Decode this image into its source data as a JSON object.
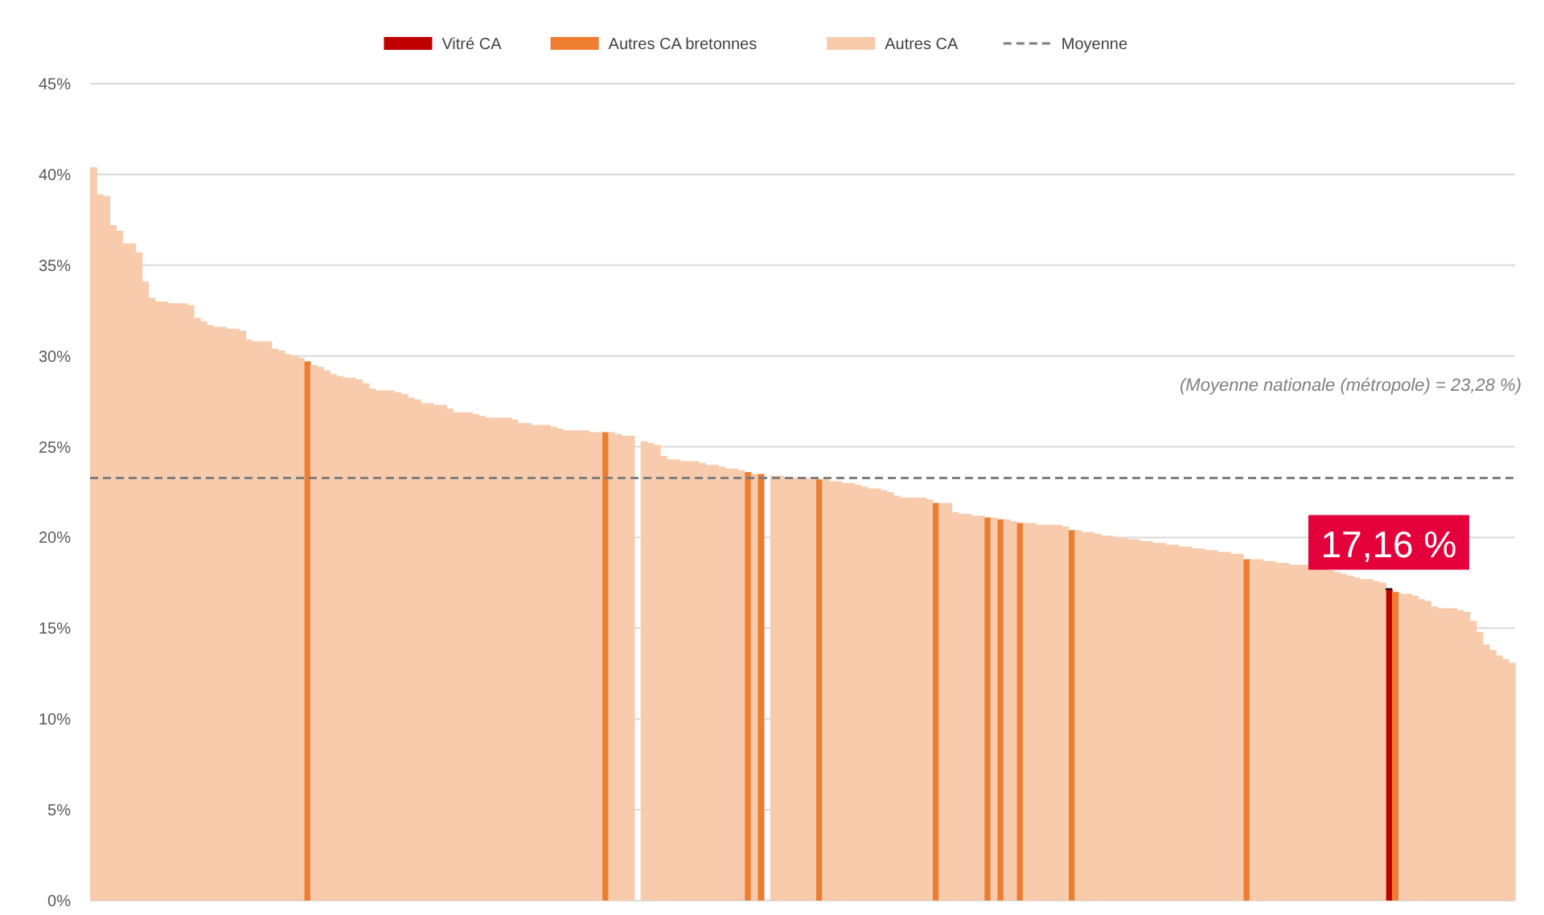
{
  "chart_data": {
    "type": "bar",
    "legend": "top",
    "grid": "y",
    "ylim": [
      0,
      45
    ],
    "yticks": [
      {
        "value": 0,
        "label": "0%"
      },
      {
        "value": 5,
        "label": "5%"
      },
      {
        "value": 10,
        "label": "10%"
      },
      {
        "value": 15,
        "label": "15%"
      },
      {
        "value": 20,
        "label": "20%"
      },
      {
        "value": 25,
        "label": "25%"
      },
      {
        "value": 30,
        "label": "30%"
      },
      {
        "value": 35,
        "label": "35%"
      },
      {
        "value": 40,
        "label": "40%"
      },
      {
        "value": 45,
        "label": "45%"
      }
    ],
    "ref_lines": [
      {
        "axis": "y",
        "value": 23.28,
        "label": "Moyenne",
        "color": "#7f7f7f",
        "line_style": "dashed"
      }
    ],
    "annotations": [
      "(Moyenne nationale (métropole) = 23,28 %)"
    ],
    "categories": [
      null,
      null,
      null,
      null,
      null,
      null,
      null,
      null,
      null,
      null,
      null,
      null,
      null,
      null,
      null,
      null,
      null,
      null,
      null,
      null,
      null,
      null,
      null,
      null,
      null,
      null,
      null,
      null,
      null,
      null,
      null,
      null,
      null,
      null,
      null,
      null,
      null,
      null,
      null,
      null,
      null,
      null,
      null,
      null,
      null,
      null,
      null,
      null,
      null,
      null,
      null,
      null,
      null,
      null,
      null,
      null,
      null,
      null,
      null,
      null,
      null,
      null,
      null,
      null,
      null,
      null,
      null,
      null,
      null,
      null,
      null,
      null,
      null,
      null,
      null,
      null,
      null,
      null,
      null,
      null,
      null,
      null,
      null,
      null,
      null,
      null,
      null,
      null,
      null,
      null,
      null,
      null,
      null,
      null,
      null,
      null,
      null,
      null,
      null,
      null,
      null,
      null,
      null,
      null,
      null,
      null,
      null,
      null,
      null,
      null,
      null,
      null,
      null,
      null,
      null,
      null,
      null,
      null,
      null,
      null,
      null,
      null,
      null,
      null,
      null,
      null,
      null,
      null,
      null,
      null,
      null,
      null,
      null,
      null,
      null,
      null,
      null,
      null,
      null,
      null,
      null,
      null,
      null,
      null,
      null,
      null,
      null,
      null,
      null,
      null,
      null,
      null,
      null,
      null,
      null,
      null,
      null,
      null,
      null,
      null,
      null,
      null,
      null,
      null,
      null,
      null,
      null,
      null,
      null,
      null,
      null,
      null,
      null,
      null,
      null,
      null,
      null,
      null,
      null,
      null,
      null,
      null,
      null,
      null,
      null,
      null,
      null,
      null,
      null,
      null,
      null,
      null,
      null,
      null,
      null,
      null,
      null,
      null,
      null,
      null,
      null,
      null,
      null,
      null,
      null,
      null,
      null,
      null,
      null,
      null,
      null,
      null,
      null,
      null,
      null,
      null,
      null,
      null,
      null,
      null
    ],
    "series": [
      {
        "name": "Vitré CA",
        "color": "#c00000",
        "values": [
          null,
          null,
          null,
          null,
          null,
          null,
          null,
          null,
          null,
          null,
          null,
          null,
          null,
          null,
          null,
          null,
          null,
          null,
          null,
          null,
          null,
          null,
          null,
          null,
          null,
          null,
          null,
          null,
          null,
          null,
          null,
          null,
          null,
          null,
          null,
          null,
          null,
          null,
          null,
          null,
          null,
          null,
          null,
          null,
          null,
          null,
          null,
          null,
          null,
          null,
          null,
          null,
          null,
          null,
          null,
          null,
          null,
          null,
          null,
          null,
          null,
          null,
          null,
          null,
          null,
          null,
          null,
          null,
          null,
          null,
          null,
          null,
          null,
          null,
          null,
          null,
          null,
          null,
          null,
          null,
          null,
          null,
          null,
          null,
          null,
          null,
          null,
          null,
          null,
          null,
          null,
          null,
          null,
          null,
          null,
          null,
          null,
          null,
          null,
          null,
          null,
          null,
          null,
          null,
          null,
          null,
          null,
          null,
          null,
          null,
          null,
          null,
          null,
          null,
          null,
          null,
          null,
          null,
          null,
          null,
          null,
          null,
          null,
          null,
          null,
          null,
          null,
          null,
          null,
          null,
          null,
          null,
          null,
          null,
          null,
          null,
          null,
          null,
          null,
          null,
          null,
          null,
          null,
          null,
          null,
          null,
          null,
          null,
          null,
          null,
          null,
          null,
          null,
          null,
          null,
          null,
          null,
          null,
          null,
          null,
          null,
          null,
          null,
          null,
          null,
          null,
          null,
          null,
          null,
          null,
          null,
          null,
          null,
          null,
          null,
          null,
          null,
          null,
          null,
          null,
          null,
          null,
          null,
          null,
          null,
          null,
          null,
          null,
          null,
          null,
          null,
          null,
          null,
          null,
          null,
          null,
          null,
          null,
          null,
          null,
          17.16,
          null,
          null,
          null,
          null,
          null,
          null,
          null,
          null,
          null,
          null,
          null,
          null,
          null,
          null,
          null,
          null,
          null,
          null,
          null
        ],
        "value_labels": [
          null,
          null,
          null,
          null,
          null,
          null,
          null,
          null,
          null,
          null,
          null,
          null,
          null,
          null,
          null,
          null,
          null,
          null,
          null,
          null,
          null,
          null,
          null,
          null,
          null,
          null,
          null,
          null,
          null,
          null,
          null,
          null,
          null,
          null,
          null,
          null,
          null,
          null,
          null,
          null,
          null,
          null,
          null,
          null,
          null,
          null,
          null,
          null,
          null,
          null,
          null,
          null,
          null,
          null,
          null,
          null,
          null,
          null,
          null,
          null,
          null,
          null,
          null,
          null,
          null,
          null,
          null,
          null,
          null,
          null,
          null,
          null,
          null,
          null,
          null,
          null,
          null,
          null,
          null,
          null,
          null,
          null,
          null,
          null,
          null,
          null,
          null,
          null,
          null,
          null,
          null,
          null,
          null,
          null,
          null,
          null,
          null,
          null,
          null,
          null,
          null,
          null,
          null,
          null,
          null,
          null,
          null,
          null,
          null,
          null,
          null,
          null,
          null,
          null,
          null,
          null,
          null,
          null,
          null,
          null,
          null,
          null,
          null,
          null,
          null,
          null,
          null,
          null,
          null,
          null,
          null,
          null,
          null,
          null,
          null,
          null,
          null,
          null,
          null,
          null,
          null,
          null,
          null,
          null,
          null,
          null,
          null,
          null,
          null,
          null,
          null,
          null,
          null,
          null,
          null,
          null,
          null,
          null,
          null,
          null,
          null,
          null,
          null,
          null,
          null,
          null,
          null,
          null,
          null,
          null,
          null,
          null,
          null,
          null,
          null,
          null,
          null,
          null,
          null,
          null,
          null,
          null,
          null,
          null,
          null,
          null,
          null,
          null,
          null,
          null,
          null,
          null,
          null,
          null,
          null,
          null,
          null,
          null,
          null,
          null,
          "17,16 %",
          null,
          null,
          null,
          null,
          null,
          null,
          null,
          null,
          null,
          null,
          null,
          null,
          null,
          null,
          null,
          null,
          null,
          null,
          null
        ]
      },
      {
        "name": "Autres CA bretonnes",
        "color": "#ed7d31",
        "values": [
          null,
          null,
          null,
          null,
          null,
          null,
          null,
          null,
          null,
          null,
          null,
          null,
          null,
          null,
          null,
          null,
          null,
          null,
          null,
          null,
          null,
          null,
          null,
          null,
          null,
          null,
          null,
          null,
          null,
          null,
          null,
          null,
          null,
          29.7,
          null,
          null,
          null,
          null,
          null,
          null,
          null,
          null,
          null,
          null,
          null,
          null,
          null,
          null,
          null,
          null,
          null,
          null,
          null,
          null,
          null,
          null,
          null,
          null,
          null,
          null,
          null,
          null,
          null,
          null,
          null,
          null,
          null,
          null,
          null,
          null,
          null,
          null,
          null,
          null,
          null,
          null,
          null,
          null,
          null,
          25.8,
          null,
          null,
          null,
          null,
          null,
          null,
          null,
          null,
          null,
          null,
          null,
          null,
          null,
          null,
          null,
          null,
          null,
          null,
          null,
          null,
          null,
          23.6,
          null,
          23.5,
          null,
          null,
          null,
          null,
          null,
          null,
          null,
          null,
          23.2,
          null,
          null,
          null,
          null,
          null,
          null,
          null,
          null,
          null,
          null,
          null,
          null,
          null,
          null,
          null,
          null,
          null,
          21.9,
          null,
          null,
          null,
          null,
          null,
          null,
          null,
          21.1,
          null,
          21.0,
          null,
          null,
          20.8,
          null,
          null,
          null,
          null,
          null,
          null,
          null,
          20.4,
          null,
          null,
          null,
          null,
          null,
          null,
          null,
          null,
          null,
          null,
          null,
          null,
          null,
          null,
          null,
          null,
          null,
          null,
          null,
          null,
          null,
          null,
          null,
          null,
          null,
          null,
          18.8,
          null,
          null,
          null,
          null,
          null,
          null,
          null,
          null,
          null,
          null,
          null,
          null,
          null,
          null,
          null,
          null,
          null,
          null,
          null,
          null,
          null,
          null,
          17.0,
          null,
          null,
          null,
          null,
          null,
          null,
          null,
          null,
          null,
          null,
          null,
          null,
          null,
          null,
          null,
          null,
          null,
          null
        ]
      },
      {
        "name": "Autres CA",
        "color": "#f8cbad",
        "values": [
          40.4,
          38.9,
          38.8,
          37.2,
          36.9,
          36.2,
          36.2,
          35.7,
          34.1,
          33.2,
          33.0,
          33.0,
          32.9,
          32.9,
          32.9,
          32.8,
          32.1,
          31.9,
          31.7,
          31.6,
          31.6,
          31.5,
          31.5,
          31.4,
          30.9,
          30.8,
          30.8,
          30.8,
          30.4,
          30.3,
          30.1,
          30.0,
          29.9,
          null,
          29.5,
          29.4,
          29.2,
          29.0,
          28.9,
          28.8,
          28.8,
          28.7,
          28.5,
          28.2,
          28.1,
          28.1,
          28.1,
          28.0,
          27.9,
          27.7,
          27.6,
          27.4,
          27.4,
          27.3,
          27.3,
          27.1,
          26.9,
          26.9,
          26.9,
          26.8,
          26.7,
          26.6,
          26.6,
          26.6,
          26.6,
          26.5,
          26.3,
          26.3,
          26.2,
          26.2,
          26.2,
          26.1,
          26.0,
          25.9,
          25.9,
          25.9,
          25.9,
          25.8,
          25.8,
          null,
          25.8,
          25.7,
          25.6,
          25.6,
          null,
          25.3,
          25.2,
          25.1,
          24.5,
          24.3,
          24.3,
          24.2,
          24.2,
          24.2,
          24.1,
          24.0,
          24.0,
          23.9,
          23.8,
          23.8,
          23.7,
          null,
          23.5,
          null,
          null,
          23.4,
          23.4,
          23.3,
          23.3,
          23.3,
          23.3,
          23.2,
          null,
          23.2,
          23.1,
          23.1,
          23.0,
          23.0,
          22.9,
          22.8,
          22.7,
          22.7,
          22.6,
          22.5,
          22.3,
          22.2,
          22.2,
          22.2,
          22.2,
          22.1,
          null,
          21.9,
          21.9,
          21.4,
          21.3,
          21.3,
          21.2,
          21.2,
          null,
          21.1,
          null,
          21.0,
          20.9,
          null,
          20.8,
          20.8,
          20.7,
          20.7,
          20.7,
          20.7,
          20.6,
          null,
          20.4,
          20.3,
          20.3,
          20.2,
          20.1,
          20.1,
          20.0,
          20.0,
          19.9,
          19.9,
          19.8,
          19.8,
          19.7,
          19.7,
          19.6,
          19.6,
          19.5,
          19.5,
          19.4,
          19.4,
          19.3,
          19.3,
          19.2,
          19.2,
          19.1,
          19.1,
          null,
          18.8,
          18.8,
          18.7,
          18.7,
          18.6,
          18.6,
          18.5,
          18.5,
          18.5,
          18.5,
          18.4,
          18.3,
          18.2,
          18.1,
          18.0,
          17.9,
          17.8,
          17.7,
          17.7,
          17.6,
          17.5,
          null,
          null,
          16.9,
          16.9,
          16.8,
          16.6,
          16.5,
          16.2,
          16.1,
          16.1,
          16.1,
          16.0,
          15.9,
          15.4,
          14.8,
          14.1,
          13.8,
          13.5,
          13.3,
          13.1
        ]
      }
    ]
  }
}
